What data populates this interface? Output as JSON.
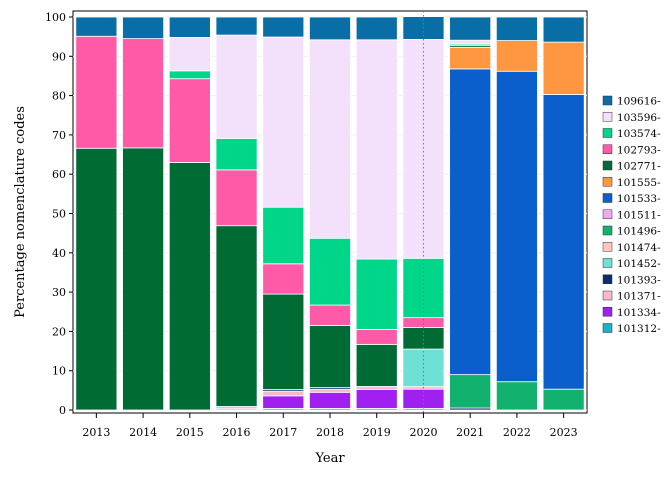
{
  "chart_data": {
    "type": "bar",
    "stacked": true,
    "title": "",
    "xlabel": "Year",
    "ylabel": "Percentage nomenclature codes",
    "ylim": [
      0,
      100
    ],
    "yticks": [
      0,
      10,
      20,
      30,
      40,
      50,
      60,
      70,
      80,
      90,
      100
    ],
    "categories": [
      "2013",
      "2014",
      "2015",
      "2016",
      "2017",
      "2018",
      "2019",
      "2020",
      "2021",
      "2022",
      "2023"
    ],
    "reference_line": {
      "category": "2020",
      "style": "dotted",
      "color": "#a06080"
    },
    "legend": {
      "placement": "right"
    },
    "series": [
      {
        "name": "101312-",
        "color": "#17b3c8",
        "values": [
          0,
          0,
          0,
          0.3,
          0.4,
          0.4,
          0.4,
          0.4,
          0,
          0,
          0
        ]
      },
      {
        "name": "101334-",
        "color": "#a020f0",
        "values": [
          0,
          0,
          0,
          0,
          3.2,
          4.1,
          4.8,
          4.9,
          0,
          0,
          0
        ]
      },
      {
        "name": "101371-",
        "color": "#f7b6d2",
        "values": [
          0,
          0,
          0,
          0.3,
          1.2,
          0.8,
          0.5,
          0.4,
          0,
          0,
          0
        ]
      },
      {
        "name": "101393-",
        "color": "#0b2e6b",
        "values": [
          0,
          0,
          0,
          0.3,
          0.4,
          0.4,
          0.3,
          0.3,
          0.5,
          0,
          0
        ]
      },
      {
        "name": "101452-",
        "color": "#6ee0d5",
        "values": [
          0,
          0,
          0,
          0,
          0,
          0,
          0,
          9.5,
          0,
          0,
          0
        ]
      },
      {
        "name": "101474-",
        "color": "#ffc6c0",
        "values": [
          0,
          0,
          0,
          0,
          0,
          0,
          0,
          0,
          0,
          0,
          0
        ]
      },
      {
        "name": "101496-",
        "color": "#12b26e",
        "values": [
          0,
          0,
          0,
          0,
          0,
          0,
          0,
          0,
          8.5,
          7.2,
          5.3
        ]
      },
      {
        "name": "101511-",
        "color": "#f0a8f0",
        "values": [
          0,
          0,
          0,
          0,
          0,
          0,
          0,
          0,
          0,
          0,
          0
        ]
      },
      {
        "name": "101533-",
        "color": "#0a5fcc",
        "values": [
          0,
          0,
          0,
          0,
          0,
          0,
          0,
          0,
          77.8,
          79.0,
          75.0
        ]
      },
      {
        "name": "101555-",
        "color": "#ff9640",
        "values": [
          0,
          0,
          0,
          0,
          0,
          0,
          0,
          0,
          5.5,
          7.8,
          13.3
        ]
      },
      {
        "name": "102771-",
        "color": "#006b35",
        "values": [
          66.6,
          66.7,
          63.0,
          46.0,
          24.3,
          15.8,
          10.7,
          5.5,
          0.5,
          0,
          0
        ]
      },
      {
        "name": "102793-",
        "color": "#ff5aa8",
        "values": [
          28.5,
          27.8,
          21.3,
          14.2,
          7.7,
          5.2,
          3.8,
          2.5,
          0,
          0,
          0
        ]
      },
      {
        "name": "103574-",
        "color": "#00d68a",
        "values": [
          0,
          0,
          2.0,
          8.0,
          14.4,
          17.0,
          17.9,
          15.1,
          0.3,
          0,
          0
        ]
      },
      {
        "name": "103596-",
        "color": "#f3e1fc",
        "values": [
          0,
          0,
          8.5,
          26.3,
          43.3,
          50.5,
          55.8,
          55.7,
          1.0,
          0,
          0
        ]
      },
      {
        "name": "109616-",
        "color": "#0a6ea6",
        "values": [
          4.9,
          5.5,
          5.2,
          4.6,
          5.1,
          5.8,
          5.8,
          5.8,
          5.9,
          6.0,
          6.4
        ]
      }
    ]
  }
}
